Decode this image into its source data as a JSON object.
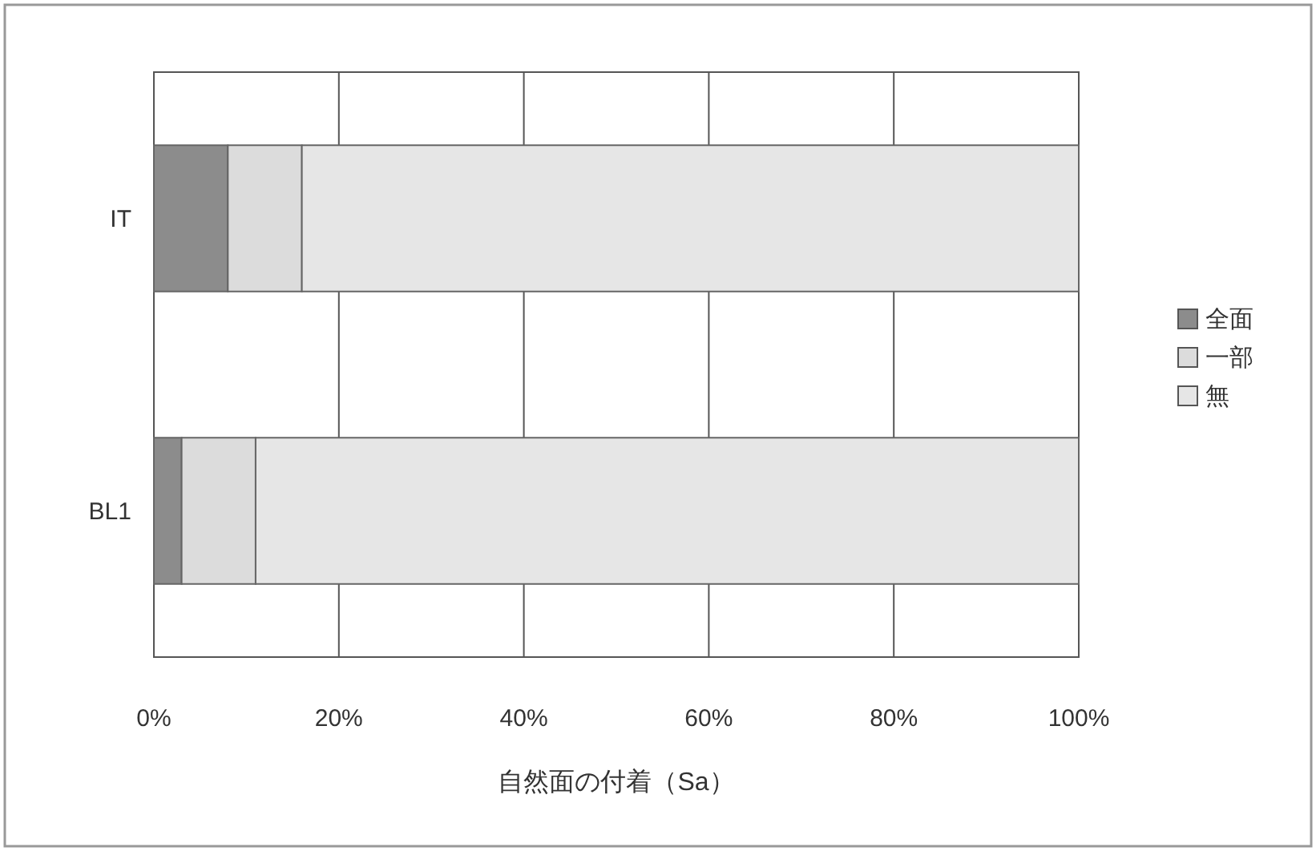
{
  "chart_data": {
    "type": "bar",
    "orientation": "horizontal",
    "stacked": true,
    "xlabel": "自然面の付着（Sa）",
    "categories": [
      "IT",
      "BL1"
    ],
    "series": [
      {
        "name": "全面",
        "color": "#8c8c8c",
        "values": [
          8,
          3
        ]
      },
      {
        "name": "一部",
        "color": "#dcdcdc",
        "values": [
          8,
          8
        ]
      },
      {
        "name": "無",
        "color": "#e6e6e6",
        "values": [
          84,
          89
        ]
      }
    ],
    "xlim": [
      0,
      100
    ],
    "xticks": [
      {
        "value": 0,
        "label": "0%"
      },
      {
        "value": 20,
        "label": "20%"
      },
      {
        "value": 40,
        "label": "40%"
      },
      {
        "value": 60,
        "label": "60%"
      },
      {
        "value": 80,
        "label": "80%"
      },
      {
        "value": 100,
        "label": "100%"
      }
    ],
    "grid": "x",
    "legend": "right"
  }
}
